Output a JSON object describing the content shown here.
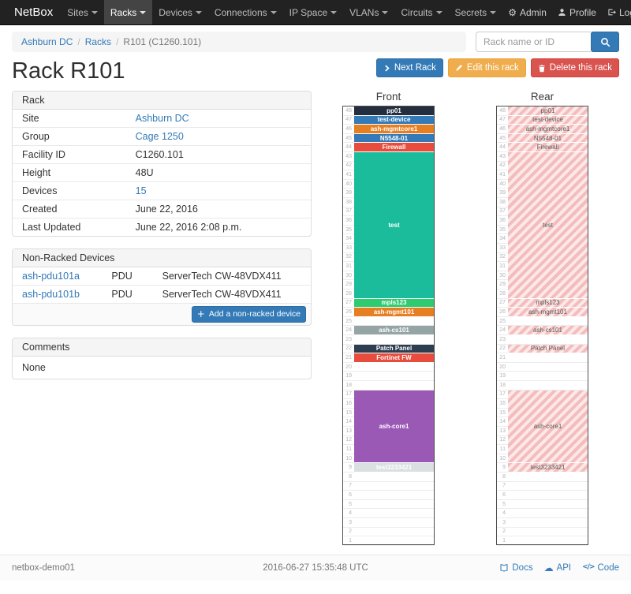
{
  "navbar": {
    "brand": "NetBox",
    "items": [
      {
        "label": "Sites",
        "active": false
      },
      {
        "label": "Racks",
        "active": true
      },
      {
        "label": "Devices",
        "active": false
      },
      {
        "label": "Connections",
        "active": false
      },
      {
        "label": "IP Space",
        "active": false
      },
      {
        "label": "VLANs",
        "active": false
      },
      {
        "label": "Circuits",
        "active": false
      },
      {
        "label": "Secrets",
        "active": false
      }
    ],
    "right": [
      {
        "label": "Admin",
        "icon": "gear-icon"
      },
      {
        "label": "Profile",
        "icon": "user-icon"
      },
      {
        "label": "Log out",
        "icon": "logout-icon"
      }
    ]
  },
  "breadcrumb": [
    {
      "label": "Ashburn DC",
      "link": true
    },
    {
      "label": "Racks",
      "link": true
    },
    {
      "label": "R101 (C1260.101)",
      "link": false
    }
  ],
  "search": {
    "placeholder": "Rack name or ID"
  },
  "actions": [
    {
      "label": "Next Rack",
      "icon": "chevron-right-icon",
      "style": "primary",
      "name": "next-rack-button"
    },
    {
      "label": "Edit this rack",
      "icon": "pencil-icon",
      "style": "warning",
      "name": "edit-rack-button"
    },
    {
      "label": "Delete this rack",
      "icon": "trash-icon",
      "style": "danger",
      "name": "delete-rack-button"
    }
  ],
  "page_title": "Rack R101",
  "rack_panel": {
    "title": "Rack",
    "rows": [
      {
        "label": "Site",
        "value": "Ashburn DC",
        "link": true
      },
      {
        "label": "Group",
        "value": "Cage 1250",
        "link": true
      },
      {
        "label": "Facility ID",
        "value": "C1260.101",
        "link": false
      },
      {
        "label": "Height",
        "value": "48U",
        "link": false
      },
      {
        "label": "Devices",
        "value": "15",
        "link": true
      },
      {
        "label": "Created",
        "value": "June 22, 2016",
        "link": false
      },
      {
        "label": "Last Updated",
        "value": "June 22, 2016 2:08 p.m.",
        "link": false
      }
    ]
  },
  "non_racked": {
    "title": "Non-Racked Devices",
    "devices": [
      {
        "name": "ash-pdu101a",
        "role": "PDU",
        "model": "ServerTech CW-48VDX411"
      },
      {
        "name": "ash-pdu101b",
        "role": "PDU",
        "model": "ServerTech CW-48VDX411"
      }
    ],
    "add_button": "Add a non-racked device"
  },
  "comments": {
    "title": "Comments",
    "body": "None"
  },
  "elevations": {
    "front_title": "Front",
    "rear_title": "Rear",
    "units": 48,
    "devices": [
      {
        "name": "pp01",
        "top_u": 48,
        "height": 1,
        "color": "#232e3f",
        "text_color": "#ffffff",
        "shown_rear": true
      },
      {
        "name": "test-device",
        "top_u": 47,
        "height": 1,
        "color": "#337ab7",
        "text_color": "#ffffff",
        "shown_rear": true
      },
      {
        "name": "ash-mgmtcore1",
        "top_u": 46,
        "height": 1,
        "color": "#e67e22",
        "text_color": "#ffffff",
        "shown_rear": true
      },
      {
        "name": "N5548-01",
        "top_u": 45,
        "height": 1,
        "color": "#337ab7",
        "text_color": "#ffffff",
        "shown_rear": true
      },
      {
        "name": "Firewall",
        "top_u": 44,
        "height": 1,
        "color": "#e74c3c",
        "text_color": "#ffffff",
        "shown_rear": true
      },
      {
        "name": "test",
        "top_u": 43,
        "height": 16,
        "color": "#1abc9c",
        "text_color": "#ffffff",
        "shown_rear": true
      },
      {
        "name": "mpls123",
        "top_u": 27,
        "height": 1,
        "color": "#2ecc71",
        "text_color": "#ffffff",
        "shown_rear": true
      },
      {
        "name": "ash-mgmt101",
        "top_u": 26,
        "height": 1,
        "color": "#e67e22",
        "text_color": "#ffffff",
        "shown_rear": true
      },
      {
        "name": "ash-cs101",
        "top_u": 24,
        "height": 1,
        "color": "#95a5a6",
        "text_color": "#ffffff",
        "shown_rear": true
      },
      {
        "name": "Patch Panel",
        "top_u": 22,
        "height": 1,
        "color": "#2c3e50",
        "text_color": "#ffffff",
        "shown_rear": true
      },
      {
        "name": "Fortinet FW",
        "top_u": 21,
        "height": 1,
        "color": "#e74c3c",
        "text_color": "#ffffff",
        "shown_rear": false
      },
      {
        "name": "ash-core1",
        "top_u": 17,
        "height": 8,
        "color": "#9b59b6",
        "text_color": "#ffffff",
        "shown_rear": true
      },
      {
        "name": "test3233421",
        "top_u": 9,
        "height": 1,
        "color": "#dadfe1",
        "text_color": "#ffffff",
        "shown_rear": true
      }
    ]
  },
  "footer": {
    "hostname": "netbox-demo01",
    "timestamp": "2016-06-27 15:35:48 UTC",
    "links": [
      {
        "label": "Docs",
        "icon": "book-icon"
      },
      {
        "label": "API",
        "icon": "cloud-icon"
      },
      {
        "label": "Code",
        "icon": "code-icon"
      }
    ]
  }
}
